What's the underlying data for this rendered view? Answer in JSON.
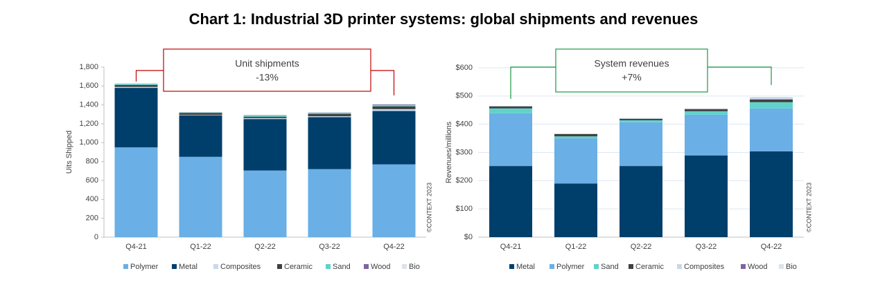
{
  "title": "Chart 1: Industrial 3D printer systems: global shipments and revenues",
  "chart_data": [
    {
      "type": "bar",
      "stacked": true,
      "y_label": "Uits Shipped",
      "annotation": [
        "Unit shipments",
        "-13%"
      ],
      "credit": "©CONTEXT 2023",
      "grid": false,
      "categories": [
        "Q4-21",
        "Q1-22",
        "Q2-22",
        "Q3-22",
        "Q4-22"
      ],
      "ylim": [
        0,
        1800
      ],
      "yticks": [
        0,
        200,
        400,
        600,
        800,
        {
          "value": 1000,
          "label": "1,000"
        },
        {
          "value": 1200,
          "label": "1,200"
        },
        {
          "value": 1400,
          "label": "1,400"
        },
        {
          "value": 1600,
          "label": "1,600"
        },
        {
          "value": 1800,
          "label": "1,800"
        }
      ],
      "series": [
        {
          "name": "Polymer",
          "color": "#6aafe6",
          "values": [
            950,
            850,
            705,
            720,
            770
          ]
        },
        {
          "name": "Metal",
          "color": "#003f6b",
          "values": [
            630,
            440,
            545,
            550,
            565
          ]
        },
        {
          "name": "Composites",
          "color": "#c9d9ea",
          "values": [
            10,
            5,
            10,
            10,
            20
          ]
        },
        {
          "name": "Ceramic",
          "color": "#404040",
          "values": [
            20,
            20,
            15,
            25,
            30
          ]
        },
        {
          "name": "Sand",
          "color": "#5fd3c9",
          "values": [
            10,
            5,
            15,
            10,
            15
          ]
        },
        {
          "name": "Wood",
          "color": "#8064a2",
          "values": [
            3,
            2,
            2,
            3,
            5
          ]
        },
        {
          "name": "Bio",
          "color": "#dde3ea",
          "values": [
            5,
            3,
            3,
            5,
            5
          ]
        }
      ]
    },
    {
      "type": "bar",
      "stacked": true,
      "y_label": "Revenues/millions",
      "annotation": [
        "System revenues",
        "+7%"
      ],
      "credit": "©CONTEXT 2023",
      "grid": true,
      "categories": [
        "Q4-21",
        "Q1-22",
        "Q2-22",
        "Q3-22",
        "Q4-22"
      ],
      "ylim": [
        0,
        600
      ],
      "yticks": [
        {
          "value": 0,
          "label": "$0"
        },
        {
          "value": 100,
          "label": "$100"
        },
        {
          "value": 200,
          "label": "$200"
        },
        {
          "value": 300,
          "label": "$300"
        },
        {
          "value": 400,
          "label": "$400"
        },
        {
          "value": 500,
          "label": "$500"
        },
        {
          "value": 600,
          "label": "$600"
        }
      ],
      "series": [
        {
          "name": "Metal",
          "color": "#003f6b",
          "values": [
            252,
            190,
            252,
            289,
            304
          ]
        },
        {
          "name": "Polymer",
          "color": "#6aafe6",
          "values": [
            187,
            160,
            155,
            145,
            152
          ]
        },
        {
          "name": "Sand",
          "color": "#5fd3c9",
          "values": [
            17,
            7,
            7,
            12,
            22
          ]
        },
        {
          "name": "Ceramic",
          "color": "#404040",
          "values": [
            7,
            8,
            5,
            7,
            10
          ]
        },
        {
          "name": "Composites",
          "color": "#c9d9ea",
          "values": [
            1,
            1,
            2,
            2,
            5
          ]
        },
        {
          "name": "Wood",
          "color": "#8064a2",
          "values": [
            0.5,
            0.5,
            0.5,
            0.5,
            1
          ]
        },
        {
          "name": "Bio",
          "color": "#dde3ea",
          "values": [
            1,
            1,
            1,
            1,
            2
          ]
        }
      ]
    }
  ]
}
